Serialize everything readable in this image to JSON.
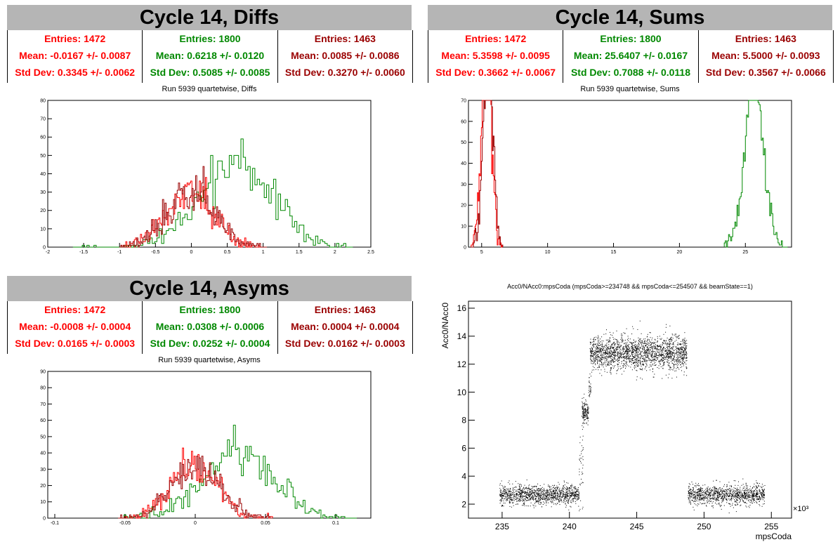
{
  "panels": {
    "diffs": {
      "title": "Cycle 14, Diffs",
      "stats": [
        {
          "entries": "Entries: 1472",
          "mean": "Mean: -0.0167 +/- 0.0087",
          "std": "Std Dev: 0.3345 +/- 0.0062",
          "color": "#ff0000"
        },
        {
          "entries": "Entries: 1800",
          "mean": "Mean: 0.6218 +/- 0.0120",
          "std": "Std Dev: 0.5085 +/- 0.0085",
          "color": "#008800"
        },
        {
          "entries": "Entries: 1463",
          "mean": "Mean: 0.0085 +/- 0.0086",
          "std": "Std Dev: 0.3270 +/- 0.0060",
          "color": "#9a0000"
        }
      ],
      "subtitle": "Run 5939 quartetwise, Diffs"
    },
    "sums": {
      "title": "Cycle 14, Sums",
      "stats": [
        {
          "entries": "Entries: 1472",
          "mean": "Mean: 5.3598 +/- 0.0095",
          "std": "Std Dev: 0.3662 +/- 0.0067",
          "color": "#ff0000"
        },
        {
          "entries": "Entries: 1800",
          "mean": "Mean: 25.6407 +/- 0.0167",
          "std": "Std Dev: 0.7088 +/- 0.0118",
          "color": "#008800"
        },
        {
          "entries": "Entries: 1463",
          "mean": "Mean: 5.5000 +/- 0.0093",
          "std": "Std Dev: 0.3567 +/- 0.0066",
          "color": "#9a0000"
        }
      ],
      "subtitle": "Run 5939 quartetwise, Sums"
    },
    "asyms": {
      "title": "Cycle 14, Asyms",
      "stats": [
        {
          "entries": "Entries: 1472",
          "mean": "Mean: -0.0008 +/- 0.0004",
          "std": "Std Dev: 0.0165 +/- 0.0003",
          "color": "#ff0000"
        },
        {
          "entries": "Entries: 1800",
          "mean": "Mean: 0.0308 +/- 0.0006",
          "std": "Std Dev: 0.0252 +/- 0.0004",
          "color": "#008800"
        },
        {
          "entries": "Entries: 1463",
          "mean": "Mean: 0.0004 +/- 0.0004",
          "std": "Std Dev: 0.0162 +/- 0.0003",
          "color": "#9a0000"
        }
      ],
      "subtitle": "Run 5939 quartetwise, Asyms"
    },
    "scatter": {
      "title": "Acc0/NAcc0:mpsCoda (mpsCoda>=234748 && mpsCoda<=254507 && beamState==1)"
    }
  },
  "chart_data": [
    {
      "type": "histogram",
      "name": "diffs",
      "xlim": [
        -2,
        2.5
      ],
      "ylim": [
        0,
        80
      ],
      "xticks": [
        -2,
        -1.5,
        -1,
        -0.5,
        0,
        0.5,
        1,
        1.5,
        2,
        2.5
      ],
      "xtick_labels": [
        "-2",
        "-1.5",
        "-1",
        "-0.5",
        "0",
        "0.5",
        "1",
        "1.5",
        "2",
        "2.5"
      ],
      "yticks": [
        0,
        10,
        20,
        30,
        40,
        50,
        60,
        70,
        80
      ],
      "ytick_labels": [
        "0",
        "10",
        "20",
        "30",
        "40",
        "50",
        "60",
        "70",
        "80"
      ],
      "series": [
        {
          "color": "#008800",
          "entries": 1800,
          "mean": 0.6218,
          "std": 0.5085,
          "xmin": -1.65,
          "xmax": 2.25,
          "bins": 120
        },
        {
          "color": "#ff0000",
          "entries": 1472,
          "mean": -0.0167,
          "std": 0.3345,
          "xmin": -1.0,
          "xmax": 1.05,
          "bins": 120
        },
        {
          "color": "#9a0000",
          "entries": 1463,
          "mean": 0.0085,
          "std": 0.327,
          "xmin": -1.0,
          "xmax": 1.05,
          "bins": 120
        }
      ]
    },
    {
      "type": "histogram",
      "name": "sums",
      "xlim": [
        4,
        28.5
      ],
      "ylim": [
        0,
        70
      ],
      "xticks": [
        5,
        10,
        15,
        20,
        25
      ],
      "xtick_labels": [
        "5",
        "10",
        "15",
        "20",
        "25"
      ],
      "yticks": [
        0,
        10,
        20,
        30,
        40,
        50,
        60,
        70
      ],
      "ytick_labels": [
        "0",
        "10",
        "20",
        "30",
        "40",
        "50",
        "60",
        "70"
      ],
      "series": [
        {
          "color": "#008800",
          "entries": 1800,
          "mean": 25.6407,
          "std": 0.7088,
          "xmin": 23.4,
          "xmax": 28.2,
          "bins": 60
        },
        {
          "color": "#ff0000",
          "entries": 1472,
          "mean": 5.3598,
          "std": 0.3662,
          "xmin": 4.2,
          "xmax": 6.6,
          "bins": 40
        },
        {
          "color": "#9a0000",
          "entries": 1463,
          "mean": 5.5,
          "std": 0.3567,
          "xmin": 4.2,
          "xmax": 6.6,
          "bins": 40
        }
      ]
    },
    {
      "type": "histogram",
      "name": "asyms",
      "xlim": [
        -0.105,
        0.125
      ],
      "ylim": [
        0,
        90
      ],
      "xticks": [
        -0.1,
        -0.05,
        0,
        0.05,
        0.1
      ],
      "xtick_labels": [
        "-0.1",
        "-0.05",
        "0",
        "0.05",
        "0.1"
      ],
      "yticks": [
        0,
        10,
        20,
        30,
        40,
        50,
        60,
        70,
        80,
        90
      ],
      "ytick_labels": [
        "0",
        "10",
        "20",
        "30",
        "40",
        "50",
        "60",
        "70",
        "80",
        "90"
      ],
      "series": [
        {
          "color": "#008800",
          "entries": 1800,
          "mean": 0.0308,
          "std": 0.0252,
          "xmin": -0.055,
          "xmax": 0.115,
          "bins": 120
        },
        {
          "color": "#ff0000",
          "entries": 1472,
          "mean": -0.0008,
          "std": 0.0165,
          "xmin": -0.055,
          "xmax": 0.055,
          "bins": 120
        },
        {
          "color": "#9a0000",
          "entries": 1463,
          "mean": 0.0004,
          "std": 0.0162,
          "xmin": -0.055,
          "xmax": 0.055,
          "bins": 120
        }
      ]
    },
    {
      "type": "scatter",
      "name": "scatter",
      "xlabel": "mpsCoda",
      "ylabel": "Acc0/NAcc0",
      "x_multiplier_label": "×10³",
      "xlim": [
        232.5,
        256.5
      ],
      "ylim": [
        1,
        16.5
      ],
      "xticks": [
        235,
        240,
        245,
        250,
        255
      ],
      "xtick_labels": [
        "235",
        "240",
        "245",
        "250",
        "255"
      ],
      "yticks": [
        2,
        4,
        6,
        8,
        10,
        12,
        14,
        16
      ],
      "ytick_labels": [
        "2",
        "4",
        "6",
        "8",
        "10",
        "12",
        "14",
        "16"
      ],
      "color": "#000000",
      "clusters": [
        {
          "x_range": [
            234.8,
            240.7
          ],
          "y_center": 2.7,
          "y_spread": 0.35,
          "points": 1200
        },
        {
          "x_range": [
            240.7,
            241.0
          ],
          "y_center": 4.5,
          "y_spread": 1.5,
          "points": 40
        },
        {
          "x_range": [
            240.9,
            241.4
          ],
          "y_center": 8.6,
          "y_spread": 0.4,
          "points": 150
        },
        {
          "x_range": [
            241.4,
            241.6
          ],
          "y_center": 10.3,
          "y_spread": 0.5,
          "points": 30
        },
        {
          "x_range": [
            241.5,
            248.7
          ],
          "y_center": 12.8,
          "y_spread": 0.6,
          "points": 2000
        },
        {
          "x_range": [
            248.8,
            254.5
          ],
          "y_center": 2.7,
          "y_spread": 0.35,
          "points": 1100
        }
      ]
    }
  ]
}
